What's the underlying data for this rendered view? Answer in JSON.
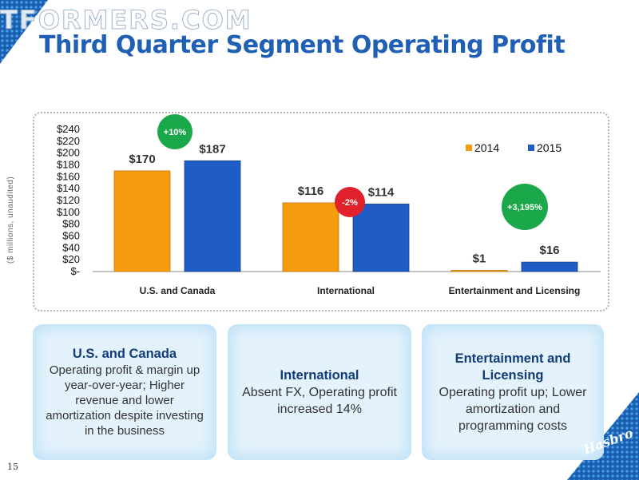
{
  "watermark": "TFORMERS.COM",
  "title": "Third Quarter Segment Operating Profit",
  "y_axis_title": "($ millions, unaudited)",
  "slide_number": "15",
  "logo_text": "Hasbro",
  "colors": {
    "series_2014": "#f59c0e",
    "series_2015": "#1f5cc4",
    "title": "#1f5fb4",
    "badge_green": "#1aa84a",
    "badge_red": "#e0202a"
  },
  "chart_data": {
    "type": "bar",
    "categories": [
      "U.S. and Canada",
      "International",
      "Entertainment and Licensing"
    ],
    "series": [
      {
        "name": "2014",
        "values": [
          170,
          116,
          1
        ],
        "labels": [
          "$170",
          "$116",
          "$1"
        ]
      },
      {
        "name": "2015",
        "values": [
          187,
          114,
          16
        ],
        "labels": [
          "$187",
          "$114",
          "$16"
        ]
      }
    ],
    "ylim": [
      0,
      240
    ],
    "yticks": [
      0,
      20,
      40,
      60,
      80,
      100,
      120,
      140,
      160,
      180,
      200,
      220,
      240
    ],
    "ytick_labels": [
      "$-",
      "$20",
      "$40",
      "$60",
      "$80",
      "$100",
      "$120",
      "$140",
      "$160",
      "$180",
      "$200",
      "$220",
      "$240"
    ],
    "legend_position": "top-right",
    "annotations": [
      {
        "text": "+10%",
        "color": "green"
      },
      {
        "text": "-2%",
        "color": "red"
      },
      {
        "text": "+3,195%",
        "color": "green"
      }
    ]
  },
  "cards": [
    {
      "title": "U.S. and Canada",
      "body": "Operating profit & margin up year-over-year; Higher revenue and lower amortization despite investing in the business"
    },
    {
      "title": "International",
      "body": "Absent FX, Operating profit increased 14%"
    },
    {
      "title": "Entertainment and Licensing",
      "body": "Operating profit up; Lower amortization and programming costs"
    }
  ]
}
